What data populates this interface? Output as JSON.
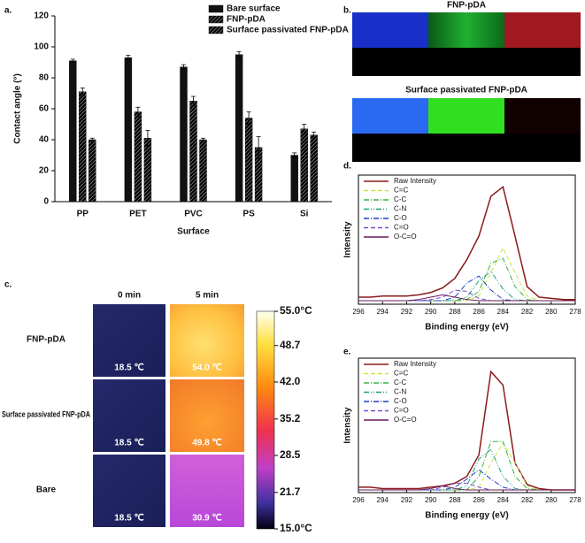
{
  "chart_data": [
    {
      "type": "bar",
      "panel_label": "a.",
      "xlabel": "Surface",
      "ylabel": "Contact angle (°)",
      "categories": [
        "PP",
        "PET",
        "PVC",
        "PS",
        "Si"
      ],
      "series": [
        {
          "name": "Bare surface",
          "color": "#111111",
          "hatch": false,
          "values": [
            91,
            93,
            87,
            95,
            30
          ],
          "errors": [
            1,
            1.5,
            1.5,
            2,
            1.5
          ]
        },
        {
          "name": "FNP-pDA",
          "color": "#d8d8d8",
          "hatch": true,
          "values": [
            71,
            58,
            65,
            54,
            47
          ],
          "errors": [
            2.5,
            3,
            3,
            4,
            3
          ]
        },
        {
          "name": "Surface passivated FNP-pDA",
          "color": "#3a3a3a",
          "hatch": true,
          "values": [
            40,
            41,
            40,
            35,
            43
          ],
          "errors": [
            1,
            5,
            1,
            7,
            2
          ]
        }
      ],
      "ylim": [
        0,
        120
      ],
      "yticks": [
        0,
        20,
        40,
        60,
        80,
        100,
        120
      ]
    },
    {
      "type": "line",
      "panel_label": "d.",
      "xlabel": "Binding energy (eV)",
      "ylabel": "Intensity",
      "x": [
        296,
        295,
        294,
        293,
        292,
        291,
        290,
        289,
        288,
        287,
        286,
        285,
        284,
        283,
        282,
        281,
        280,
        279,
        278
      ],
      "xlim": [
        296,
        278
      ],
      "xticks": [
        296,
        294,
        292,
        290,
        288,
        286,
        284,
        282,
        280,
        278
      ],
      "ylim": [
        0,
        110
      ],
      "series": [
        {
          "name": "Raw Intensity",
          "color": "#8b1a1a",
          "dash": "",
          "values": [
            6,
            6,
            7,
            7,
            7,
            8,
            10,
            14,
            22,
            38,
            58,
            92,
            100,
            58,
            15,
            6,
            5,
            4,
            4
          ]
        },
        {
          "name": "C=C",
          "color": "#c8e640",
          "dash": "5,3",
          "values": [
            3,
            3,
            3,
            3,
            3,
            3,
            3,
            3,
            3,
            3,
            7,
            27,
            48,
            27,
            7,
            3,
            3,
            3,
            3
          ]
        },
        {
          "name": "C-C",
          "color": "#3cb043",
          "dash": "6,2,1,2",
          "values": [
            3,
            3,
            3,
            3,
            3,
            3,
            3,
            3,
            3,
            4,
            11,
            35,
            39,
            15,
            4,
            3,
            3,
            3,
            3
          ]
        },
        {
          "name": "C-N",
          "color": "#1e9e7a",
          "dash": "6,2,1,2,1,2",
          "values": [
            3,
            3,
            3,
            3,
            3,
            3,
            3,
            3,
            3,
            6,
            20,
            28,
            13,
            4,
            3,
            3,
            3,
            3,
            3
          ]
        },
        {
          "name": "C-O",
          "color": "#2040c0",
          "dash": "6,2,1,2",
          "values": [
            3,
            3,
            3,
            3,
            3,
            3,
            3,
            3,
            6,
            18,
            24,
            12,
            4,
            3,
            3,
            3,
            3,
            3,
            3
          ]
        },
        {
          "name": "C=O",
          "color": "#7a4ad0",
          "dash": "5,3",
          "values": [
            3,
            3,
            3,
            3,
            3,
            3,
            4,
            6,
            12,
            11,
            5,
            3,
            3,
            3,
            3,
            3,
            3,
            3,
            3
          ]
        },
        {
          "name": "O-C=O",
          "color": "#6a1a5a",
          "dash": "",
          "values": [
            3,
            3,
            3,
            3,
            3,
            4,
            6,
            8,
            6,
            4,
            3,
            3,
            3,
            3,
            3,
            3,
            3,
            3,
            3
          ]
        }
      ]
    },
    {
      "type": "line",
      "panel_label": "e.",
      "xlabel": "Binding energy (eV)",
      "ylabel": "Intensity",
      "x": [
        296,
        295,
        294,
        293,
        292,
        291,
        290,
        289,
        288,
        287,
        286,
        285,
        284,
        283,
        282,
        281,
        280,
        279,
        278
      ],
      "xlim": [
        296,
        278
      ],
      "xticks": [
        296,
        294,
        292,
        290,
        288,
        286,
        284,
        282,
        280,
        278
      ],
      "ylim": [
        0,
        100
      ],
      "series": [
        {
          "name": "Raw Intensity",
          "color": "#8b1a1a",
          "dash": "",
          "values": [
            4,
            4,
            3,
            3,
            3,
            3,
            4,
            5,
            7,
            12,
            28,
            90,
            80,
            22,
            6,
            3,
            2,
            2,
            2
          ]
        },
        {
          "name": "C=C",
          "color": "#c8e640",
          "dash": "5,3",
          "values": [
            2,
            2,
            2,
            2,
            2,
            2,
            2,
            2,
            2,
            2,
            4,
            22,
            37,
            22,
            5,
            2,
            2,
            2,
            2
          ]
        },
        {
          "name": "C-C",
          "color": "#3cb043",
          "dash": "6,2,1,2",
          "values": [
            2,
            2,
            2,
            2,
            2,
            2,
            2,
            2,
            2,
            2,
            12,
            38,
            38,
            12,
            3,
            2,
            2,
            2,
            2
          ]
        },
        {
          "name": "C-N",
          "color": "#1e9e7a",
          "dash": "6,2,1,2,1,2",
          "values": [
            2,
            2,
            2,
            2,
            2,
            2,
            2,
            2,
            2,
            5,
            25,
            32,
            12,
            3,
            2,
            2,
            2,
            2,
            2
          ]
        },
        {
          "name": "C-O",
          "color": "#2040c0",
          "dash": "6,2,1,2",
          "values": [
            2,
            2,
            2,
            2,
            2,
            2,
            2,
            2,
            4,
            10,
            17,
            10,
            4,
            2,
            2,
            2,
            2,
            2,
            2
          ]
        },
        {
          "name": "C=O",
          "color": "#7a4ad0",
          "dash": "5,3",
          "values": [
            2,
            2,
            2,
            2,
            2,
            2,
            2,
            4,
            7,
            7,
            4,
            2,
            2,
            2,
            2,
            2,
            2,
            2,
            2
          ]
        },
        {
          "name": "O-C=O",
          "color": "#6a1a5a",
          "dash": "",
          "values": [
            2,
            2,
            2,
            2,
            2,
            2,
            3,
            5,
            3,
            2,
            2,
            2,
            2,
            2,
            2,
            2,
            2,
            2,
            2
          ]
        }
      ]
    }
  ],
  "mapping": {
    "panel_label": "b.",
    "titles": [
      "FNP-pDA",
      "Surface passivated FNP-pDA"
    ]
  },
  "thermal": {
    "panel_label": "c.",
    "columns": [
      "0 min",
      "5 min"
    ],
    "rows": [
      {
        "name": "FNP-pDA",
        "temps": [
          "18.5 ℃",
          "54.0 ℃"
        ]
      },
      {
        "name": "Surface passivated FNP-pDA",
        "temps": [
          "18.5 ℃",
          "49.8 ℃"
        ]
      },
      {
        "name": "Bare",
        "temps": [
          "18.5 ℃",
          "30.9 ℃"
        ]
      }
    ],
    "colorbar": {
      "lim": [
        15,
        55
      ],
      "ticks": [
        {
          "value": 55,
          "label": "55.0°C"
        },
        48.7,
        {
          "value": 42,
          "label": "42.0"
        },
        35.2,
        28.5,
        21.7,
        {
          "value": 15,
          "label": "15.0°C"
        }
      ]
    }
  }
}
